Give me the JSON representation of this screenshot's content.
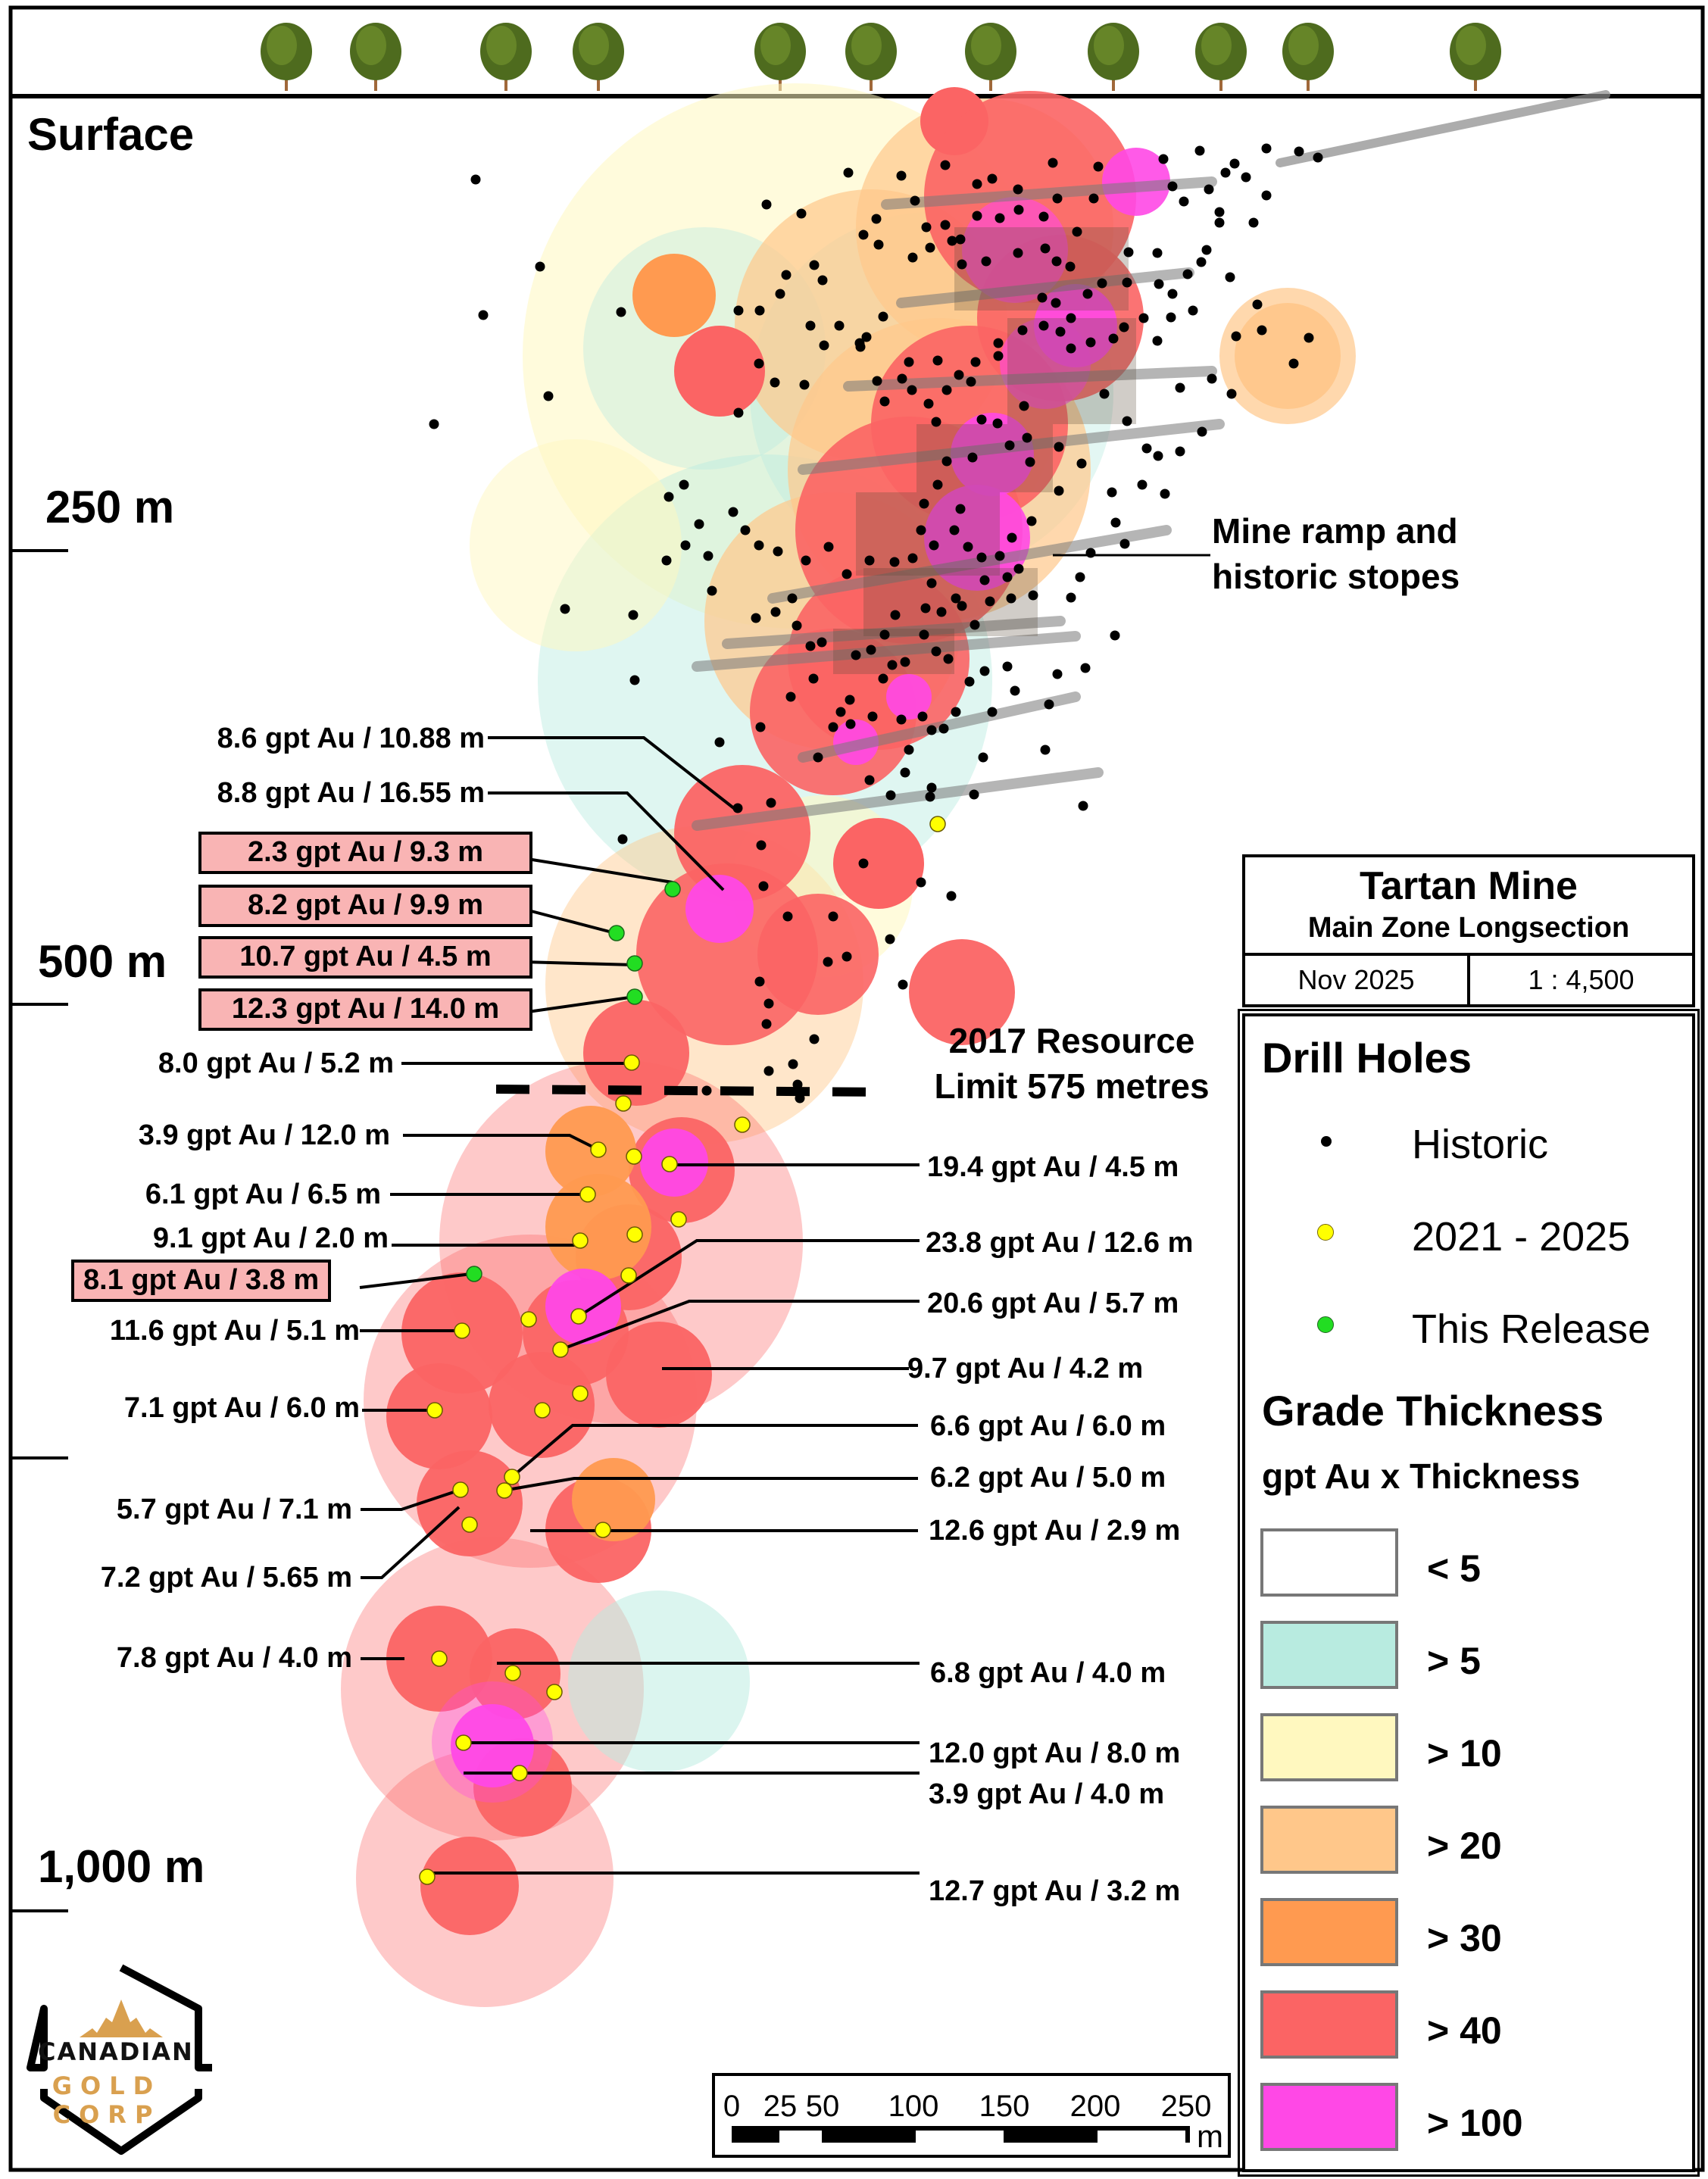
{
  "map": {
    "surface_label": "Surface",
    "depth_labels": [
      "250 m",
      "500 m",
      "1,000 m"
    ],
    "ramp_note": [
      "Mine ramp and",
      "historic stopes"
    ],
    "resource_limit_note": [
      "2017 Resource",
      "Limit 575 metres"
    ]
  },
  "title_block": {
    "title": "Tartan Mine",
    "subtitle": "Main Zone Longsection",
    "date": "Nov 2025",
    "scale": "1 : 4,500"
  },
  "legend": {
    "drill_holes_title": "Drill Holes",
    "drill_holes": [
      {
        "label": "Historic",
        "color": "#000000",
        "icon": "black-dot-icon"
      },
      {
        "label": "2021 - 2025",
        "color": "#ffff00",
        "icon": "yellow-dot-icon"
      },
      {
        "label": "This Release",
        "color": "#22dd22",
        "icon": "green-dot-icon"
      }
    ],
    "grade_title": "Grade Thickness",
    "grade_subtitle": "gpt Au x Thickness",
    "grade_classes": [
      {
        "label": "< 5",
        "color": "#ffffff"
      },
      {
        "label": "> 5",
        "color": "#b8ebe0"
      },
      {
        "label": "> 10",
        "color": "#fff8bf"
      },
      {
        "label": "> 20",
        "color": "#ffc78a"
      },
      {
        "label": "> 30",
        "color": "#ff9a50"
      },
      {
        "label": "> 40",
        "color": "#fb6464"
      },
      {
        "label": "> 100",
        "color": "#ff48e6"
      }
    ]
  },
  "intercepts_left": [
    {
      "text": "8.6 gpt Au / 10.88 m",
      "release": false
    },
    {
      "text": "8.8 gpt Au / 16.55 m",
      "release": false
    },
    {
      "text": "2.3 gpt Au / 9.3 m",
      "release": true
    },
    {
      "text": "8.2 gpt Au / 9.9 m",
      "release": true
    },
    {
      "text": "10.7 gpt Au / 4.5 m",
      "release": true
    },
    {
      "text": "12.3 gpt Au / 14.0 m",
      "release": true
    },
    {
      "text": "8.0 gpt Au / 5.2 m",
      "release": false
    },
    {
      "text": "3.9 gpt Au / 12.0 m",
      "release": false
    },
    {
      "text": "6.1 gpt Au / 6.5 m",
      "release": false
    },
    {
      "text": "9.1 gpt Au / 2.0 m",
      "release": false
    },
    {
      "text": "8.1 gpt Au / 3.8 m",
      "release": true
    },
    {
      "text": "11.6 gpt Au / 5.1 m",
      "release": false
    },
    {
      "text": "7.1 gpt Au / 6.0 m",
      "release": false
    },
    {
      "text": "5.7 gpt Au / 7.1 m",
      "release": false
    },
    {
      "text": "7.2 gpt Au / 5.65 m",
      "release": false
    },
    {
      "text": "7.8 gpt Au / 4.0 m",
      "release": false
    }
  ],
  "intercepts_right": [
    {
      "text": "19.4 gpt Au / 4.5 m"
    },
    {
      "text": "23.8 gpt Au / 12.6 m"
    },
    {
      "text": "20.6 gpt Au / 5.7 m"
    },
    {
      "text": "9.7 gpt Au / 4.2 m"
    },
    {
      "text": "6.6 gpt Au / 6.0 m"
    },
    {
      "text": "6.2 gpt Au / 5.0 m"
    },
    {
      "text": "12.6 gpt Au / 2.9 m"
    },
    {
      "text": "6.8 gpt Au / 4.0 m"
    },
    {
      "text": "12.0 gpt Au / 8.0 m"
    },
    {
      "text": "3.9 gpt Au / 4.0 m"
    },
    {
      "text": "12.7 gpt Au / 3.2 m"
    }
  ],
  "scale_bar": {
    "ticks": [
      "0",
      "25",
      "50",
      "100",
      "150",
      "200",
      "250"
    ],
    "unit": "m"
  },
  "logo": {
    "line1": "CANADIAN",
    "line2": "GOLD CORP"
  }
}
